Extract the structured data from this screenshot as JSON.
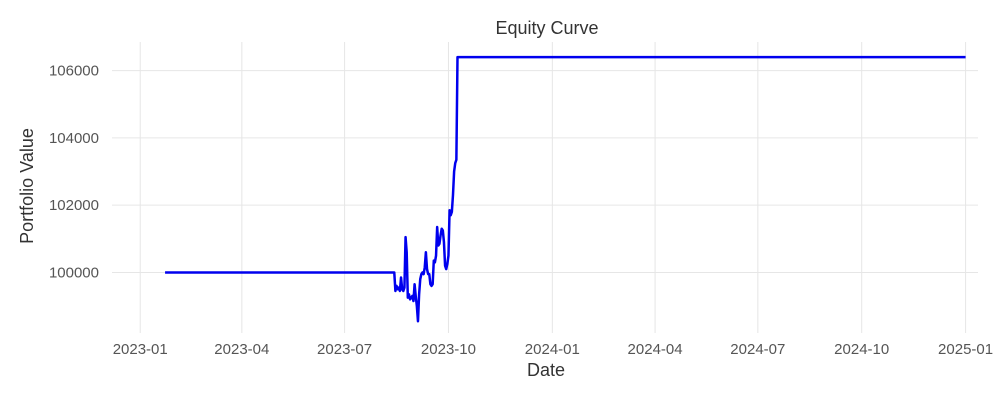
{
  "chart_data": {
    "type": "line",
    "title": "Equity Curve",
    "xlabel": "Date",
    "ylabel": "Portfolio Value",
    "x_ticks": [
      "2023-01",
      "2023-04",
      "2023-07",
      "2023-10",
      "2024-01",
      "2024-04",
      "2024-07",
      "2024-10",
      "2025-01"
    ],
    "y_ticks": [
      100000,
      102000,
      104000,
      106000
    ],
    "xlim": [
      "2022-12-07",
      "2025-01-12"
    ],
    "ylim": [
      98200,
      106850
    ],
    "grid": true,
    "colors": {
      "line": "#0000ee",
      "grid": "#e6e6e6"
    },
    "series": [
      {
        "x": [
          "2023-01-23",
          "2023-08-14",
          "2023-08-15",
          "2023-08-16",
          "2023-08-17",
          "2023-08-18",
          "2023-08-19",
          "2023-08-20",
          "2023-08-21",
          "2023-08-22",
          "2023-08-23",
          "2023-08-24",
          "2023-08-25",
          "2023-08-26",
          "2023-08-27",
          "2023-08-28",
          "2023-08-29",
          "2023-08-30",
          "2023-08-31",
          "2023-09-01",
          "2023-09-02",
          "2023-09-03",
          "2023-09-04",
          "2023-09-05",
          "2023-09-06",
          "2023-09-07",
          "2023-09-08",
          "2023-09-09",
          "2023-09-10",
          "2023-09-11",
          "2023-09-12",
          "2023-09-13",
          "2023-09-14",
          "2023-09-15",
          "2023-09-16",
          "2023-09-17",
          "2023-09-18",
          "2023-09-19",
          "2023-09-20",
          "2023-09-21",
          "2023-09-22",
          "2023-09-23",
          "2023-09-24",
          "2023-09-25",
          "2023-09-26",
          "2023-09-27",
          "2023-09-28",
          "2023-09-29",
          "2023-09-30",
          "2023-10-01",
          "2023-10-02",
          "2023-10-03",
          "2023-10-04",
          "2023-10-05",
          "2023-10-06",
          "2023-10-07",
          "2023-10-08",
          "2023-10-09",
          "2023-10-10",
          "2023-10-11",
          "2023-10-12",
          "2023-10-13",
          "2023-10-14",
          "2023-10-15",
          "2023-10-16",
          "2023-10-17",
          "2023-10-18",
          "2023-10-19",
          "2023-10-20",
          "2023-10-21",
          "2023-10-22",
          "2023-10-23",
          "2023-10-24",
          "2025-01-01"
        ],
        "values": [
          100000,
          100000,
          99450,
          99600,
          99500,
          99550,
          99450,
          99850,
          99500,
          99450,
          99550,
          101050,
          100600,
          99250,
          99350,
          99200,
          99250,
          99300,
          99150,
          99650,
          99300,
          99000,
          98550,
          99350,
          99800,
          99950,
          100000,
          99950,
          100150,
          100600,
          100100,
          99950,
          99950,
          99650,
          99600,
          99650,
          100350,
          100300,
          100500,
          101350,
          100800,
          100850,
          101100,
          101300,
          101250,
          100900,
          100200,
          100100,
          100250,
          100500,
          101850,
          101700,
          101800,
          102300,
          103000,
          103250,
          103350,
          106400,
          106400,
          106400,
          106400,
          106400,
          106400,
          106400,
          106400,
          106400,
          106400,
          106400,
          106400,
          106400,
          106400,
          106400,
          106400,
          106400
        ]
      }
    ]
  }
}
